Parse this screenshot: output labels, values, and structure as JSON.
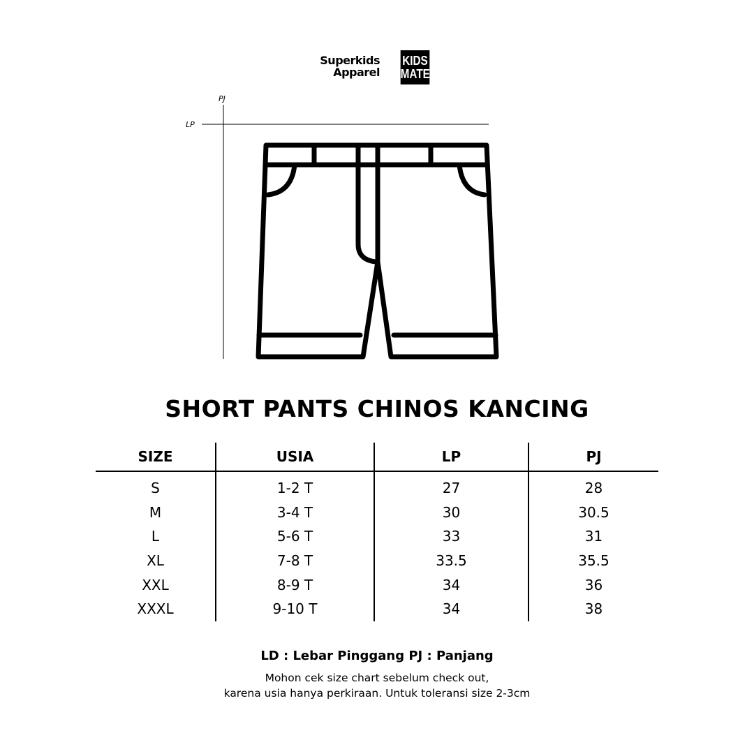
{
  "brand": {
    "name_line1": "Superkids",
    "name_line2": "Apparel",
    "logo_line1": "KIDS",
    "logo_line2": "MATE"
  },
  "diagram": {
    "vertical_label": "PJ",
    "horizontal_label": "LP"
  },
  "title": "SHORT PANTS CHINOS KANCING",
  "table": {
    "headers": [
      "SIZE",
      "USIA",
      "LP",
      "PJ"
    ],
    "rows": [
      [
        "S",
        "1-2 T",
        "27",
        "28"
      ],
      [
        "M",
        "3-4 T",
        "30",
        "30.5"
      ],
      [
        "L",
        "5-6 T",
        "33",
        "31"
      ],
      [
        "XL",
        "7-8 T",
        "33.5",
        "35.5"
      ],
      [
        "XXL",
        "8-9 T",
        "34",
        "36"
      ],
      [
        "XXXL",
        "9-10 T",
        "34",
        "38"
      ]
    ]
  },
  "legend": "LD : Lebar Pinggang  PJ : Panjang",
  "note_line1": "Mohon cek size chart sebelum check out,",
  "note_line2": "karena usia hanya perkiraan. Untuk toleransi size 2-3cm"
}
